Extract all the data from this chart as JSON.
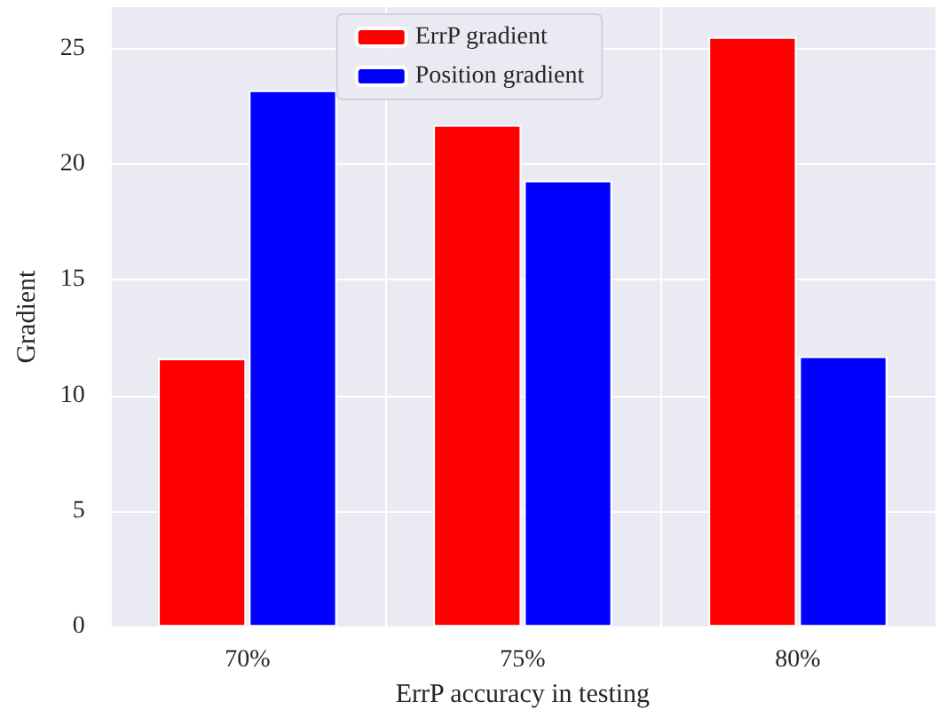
{
  "chart_data": {
    "type": "bar",
    "xlabel": "ErrP accuracy in testing",
    "ylabel": "Gradient",
    "categories": [
      "70%",
      "75%",
      "80%"
    ],
    "series": [
      {
        "name": "ErrP gradient",
        "color": "#ff0000",
        "values": [
          11.6,
          21.7,
          25.5
        ]
      },
      {
        "name": "Position gradient",
        "color": "#0000ff",
        "values": [
          23.2,
          19.3,
          11.7
        ]
      }
    ],
    "ylim": [
      0,
      26.8
    ],
    "yticks": [
      0,
      5,
      10,
      15,
      20,
      25
    ],
    "grid": true,
    "legend": "top"
  }
}
